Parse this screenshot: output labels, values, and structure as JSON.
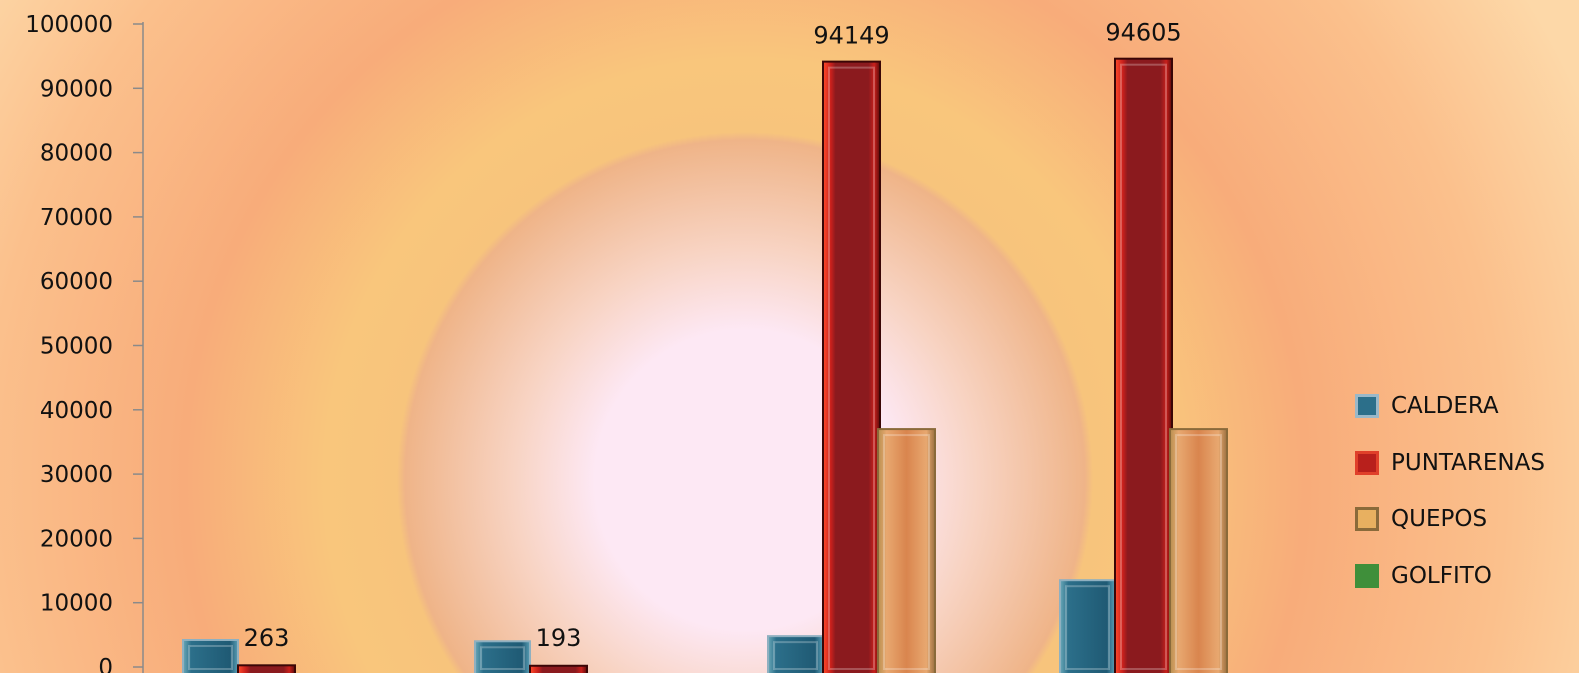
{
  "chart_data": {
    "type": "bar",
    "title": "",
    "xlabel": "",
    "ylabel": "",
    "ylim": [
      0,
      100000
    ],
    "yticks": [
      0,
      10000,
      20000,
      30000,
      40000,
      50000,
      60000,
      70000,
      80000,
      90000,
      100000
    ],
    "grid": false,
    "legend_position": "right",
    "categories": [
      "",
      "",
      "",
      ""
    ],
    "series": [
      {
        "name": "CALDERA",
        "color": "#2c6f8a",
        "values": [
          4200,
          4000,
          4800,
          13500
        ]
      },
      {
        "name": "PUNTARENAS",
        "color": "#8b1a1e",
        "values": [
          263,
          193,
          94149,
          94605
        ]
      },
      {
        "name": "QUEPOS",
        "color": "#d9854e",
        "values": [
          0,
          0,
          37000,
          37000
        ]
      },
      {
        "name": "GOLFITO",
        "color": "#3f8f3a",
        "values": [
          0,
          0,
          0,
          0
        ]
      }
    ],
    "data_labels": [
      {
        "series": "PUNTARENAS",
        "category_index": 0,
        "text": "263"
      },
      {
        "series": "PUNTARENAS",
        "category_index": 1,
        "text": "193"
      },
      {
        "series": "PUNTARENAS",
        "category_index": 2,
        "text": "94149"
      },
      {
        "series": "PUNTARENAS",
        "category_index": 3,
        "text": "94605"
      }
    ]
  },
  "legend": {
    "items": [
      {
        "label": "CALDERA",
        "color": "#2c6f8a",
        "border": "#9ab8c8"
      },
      {
        "label": "PUNTARENAS",
        "color": "#b8201c",
        "border": "#e0402a"
      },
      {
        "label": "QUEPOS",
        "color": "#e8b060",
        "border": "#8a6a3a"
      },
      {
        "label": "GOLFITO",
        "color": "#3f8f3a",
        "border": "#3f8f3a"
      }
    ]
  }
}
